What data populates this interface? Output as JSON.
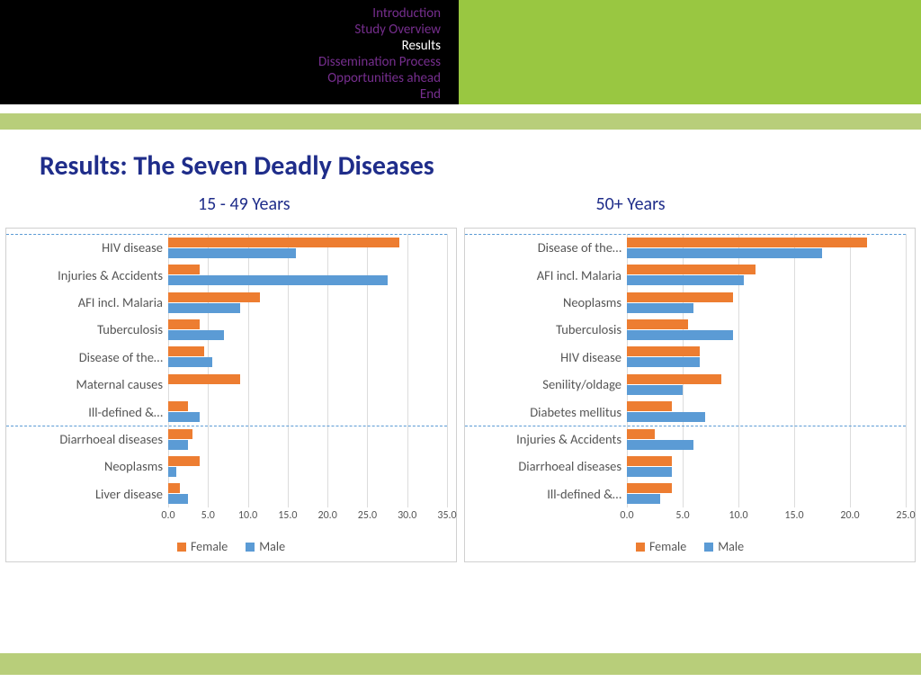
{
  "nav": {
    "items": [
      {
        "label": "Introduction",
        "active": false
      },
      {
        "label": "Study Overview",
        "active": false
      },
      {
        "label": "Results",
        "active": true
      },
      {
        "label": "Dissemination Process",
        "active": false
      },
      {
        "label": "Opportunities ahead",
        "active": false
      },
      {
        "label": "End",
        "active": false
      }
    ]
  },
  "title": "Results: The Seven Deadly Diseases",
  "colors": {
    "female": "#ed7d31",
    "male": "#5b9bd5",
    "title": "#1f2d8a",
    "nav_inactive": "#762e8e",
    "nav_active": "#ffffff",
    "nav_bg": "#000000",
    "banner_green": "#99c741",
    "separator": "#b8ce7a",
    "grid": "#dcdcdc",
    "border": "#d0d0d0",
    "dash": "#5b9bd5"
  },
  "legend": {
    "female": "Female",
    "male": "Male"
  },
  "chart_left": {
    "type": "bar-horizontal-grouped",
    "title": "15 - 49 Years",
    "xmax": 35.0,
    "xtick_step": 5.0,
    "xticks": [
      "0.0",
      "5.0",
      "10.0",
      "15.0",
      "20.0",
      "25.0",
      "30.0",
      "35.0"
    ],
    "dash_rows": [
      0,
      7
    ],
    "rows": [
      {
        "label": "HIV disease",
        "female": 29.0,
        "male": 16.0
      },
      {
        "label": "Injuries & Accidents",
        "female": 4.0,
        "male": 27.5
      },
      {
        "label": "AFI incl. Malaria",
        "female": 11.5,
        "male": 9.0
      },
      {
        "label": "Tuberculosis",
        "female": 4.0,
        "male": 7.0
      },
      {
        "label": "Disease of the…",
        "female": 4.5,
        "male": 5.5
      },
      {
        "label": "Maternal causes",
        "female": 9.0,
        "male": 0.0
      },
      {
        "label": "Ill-defined &…",
        "female": 2.5,
        "male": 4.0
      },
      {
        "label": "Diarrhoeal diseases",
        "female": 3.0,
        "male": 2.5
      },
      {
        "label": "Neoplasms",
        "female": 4.0,
        "male": 1.0
      },
      {
        "label": "Liver disease",
        "female": 1.5,
        "male": 2.5
      }
    ]
  },
  "chart_right": {
    "type": "bar-horizontal-grouped",
    "title": "50+ Years",
    "xmax": 25.0,
    "xtick_step": 5.0,
    "xticks": [
      "0.0",
      "5.0",
      "10.0",
      "15.0",
      "20.0",
      "25.0"
    ],
    "dash_rows": [
      0,
      7
    ],
    "rows": [
      {
        "label": "Disease of the…",
        "female": 21.5,
        "male": 17.5
      },
      {
        "label": "AFI incl. Malaria",
        "female": 11.5,
        "male": 10.5
      },
      {
        "label": "Neoplasms",
        "female": 9.5,
        "male": 6.0
      },
      {
        "label": "Tuberculosis",
        "female": 5.5,
        "male": 9.5
      },
      {
        "label": "HIV disease",
        "female": 6.5,
        "male": 6.5
      },
      {
        "label": "Senility/oldage",
        "female": 8.5,
        "male": 5.0
      },
      {
        "label": "Diabetes mellitus",
        "female": 4.0,
        "male": 7.0
      },
      {
        "label": "Injuries & Accidents",
        "female": 2.5,
        "male": 6.0
      },
      {
        "label": "Diarrhoeal diseases",
        "female": 4.0,
        "male": 4.0
      },
      {
        "label": "Ill-defined &…",
        "female": 4.0,
        "male": 3.0
      }
    ]
  }
}
